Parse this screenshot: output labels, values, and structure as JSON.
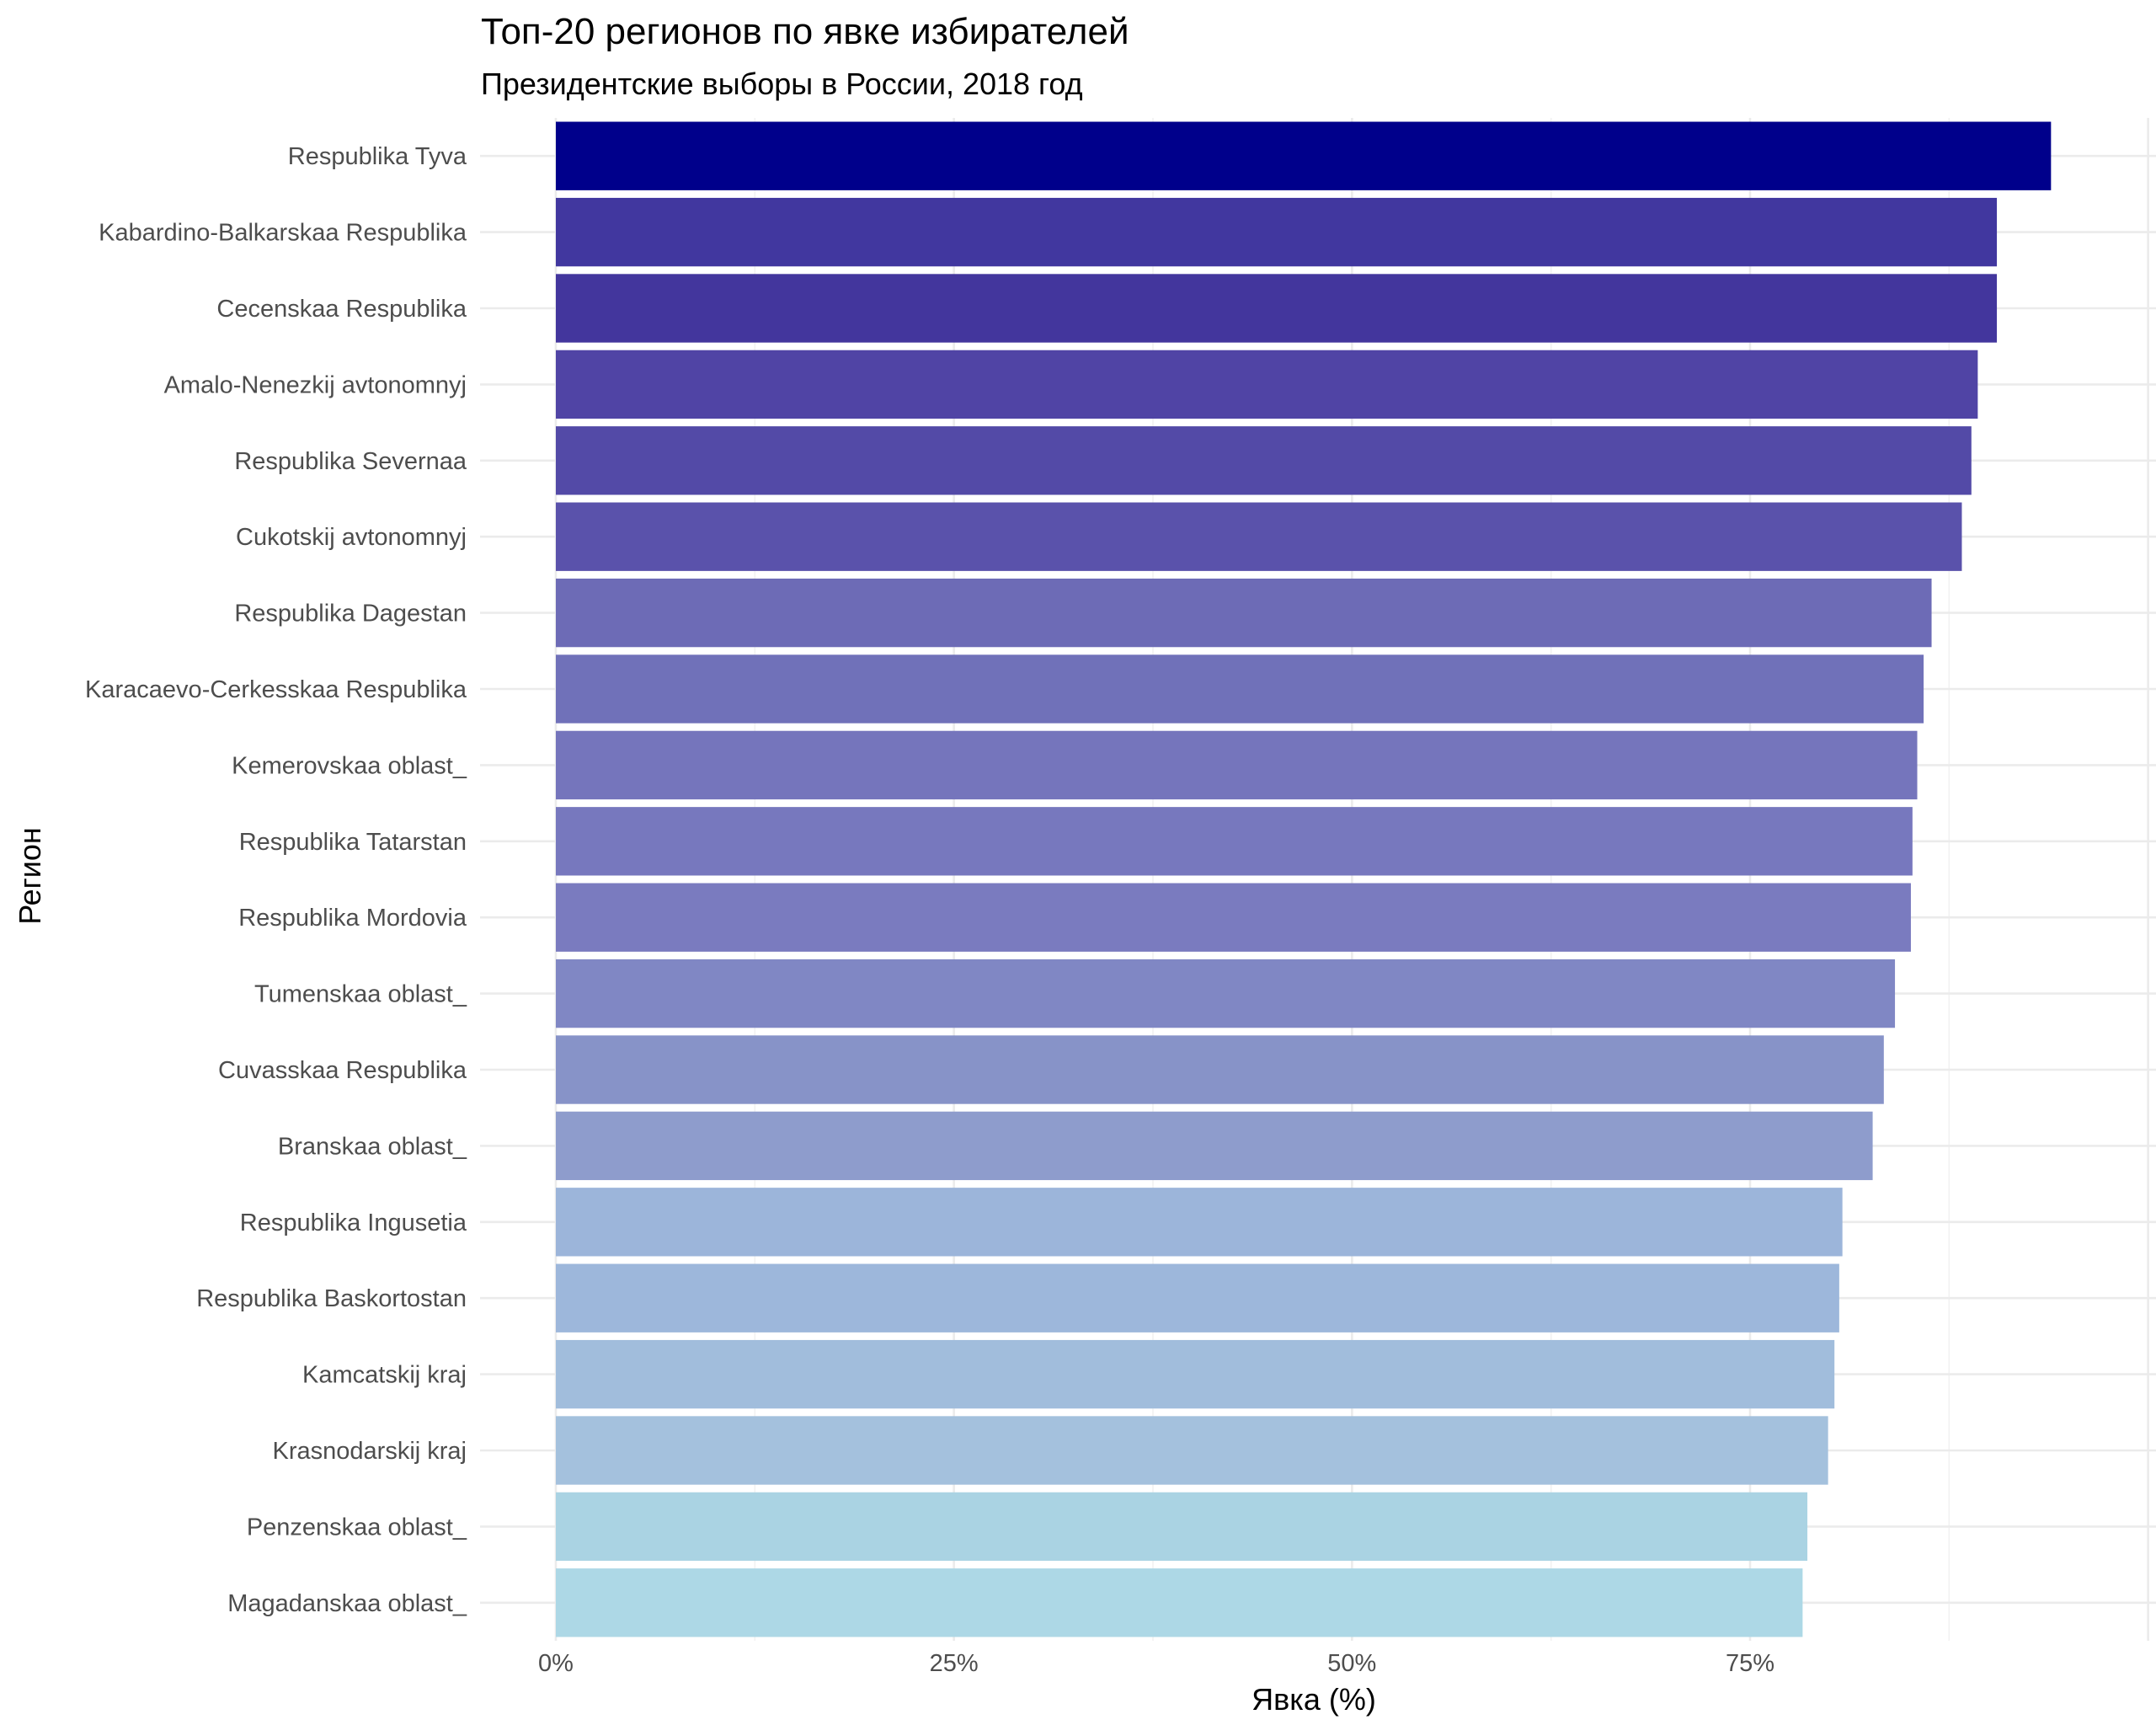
{
  "chart_data": {
    "type": "bar",
    "orientation": "horizontal",
    "title": "Топ-20 регионов по явке избирателей",
    "subtitle": "Президентские выборы в России, 2018 год",
    "xlabel": "Явка (%)",
    "ylabel": "Регион",
    "xlim": [
      0,
      100
    ],
    "x_ticks": [
      0,
      25,
      50,
      75
    ],
    "x_tick_labels": [
      "0%",
      "25%",
      "50%",
      "75%"
    ],
    "grid": true,
    "legend": "none",
    "categories": [
      "Respublika Tyva",
      "Kabardino-Balkarskaa Respublika",
      "Cecenskaa Respublika",
      "Amalo-Nenezkij avtonomnyj",
      "Respublika Severnaa",
      "Cukotskij avtonomnyj",
      "Respublika Dagestan",
      "Karacaevo-Cerkesskaa Respublika",
      "Kemerovskaa oblast_",
      "Respublika Tatarstan",
      "Respublika Mordovia",
      "Tumenskaa oblast_",
      "Cuvasskaa Respublika",
      "Branskaa oblast_",
      "Respublika Ingusetia",
      "Respublika Baskortostan",
      "Kamcatskij kraj",
      "Krasnodarskij kraj",
      "Penzenskaa oblast_",
      "Magadanskaa oblast_"
    ],
    "values": [
      93.9,
      90.5,
      90.5,
      89.3,
      88.9,
      88.3,
      86.4,
      85.9,
      85.5,
      85.2,
      85.1,
      84.1,
      83.4,
      82.7,
      80.8,
      80.6,
      80.3,
      79.9,
      78.6,
      78.3
    ],
    "colors": [
      "#00008b",
      "#41379f",
      "#43369d",
      "#5044a5",
      "#534aa7",
      "#5a52ab",
      "#6d6bb6",
      "#7071b9",
      "#7575bc",
      "#7778be",
      "#7a7bbf",
      "#8087c4",
      "#8793c8",
      "#8e9ccc",
      "#9cb5da",
      "#9db7db",
      "#a1bddc",
      "#a4c1dd",
      "#aad3e3",
      "#add8e6"
    ]
  }
}
